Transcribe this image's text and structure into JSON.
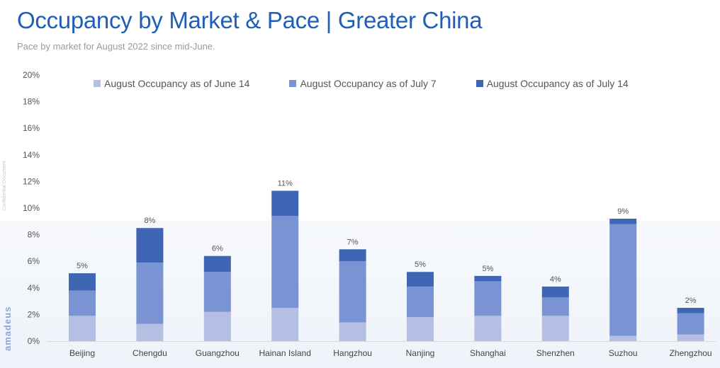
{
  "header": {
    "title": "Occupancy by Market & Pace | Greater China",
    "subtitle": "Pace by market for August 2022 since mid-June."
  },
  "side_note": "Confidential Document",
  "brand": "amadeus",
  "colors": {
    "series": [
      "#b4bfe3",
      "#7a93d3",
      "#3f66b5"
    ],
    "title": "#1f5fb8"
  },
  "chart_data": {
    "type": "bar",
    "stacked": true,
    "title": "Occupancy by Market & Pace | Greater China",
    "subtitle": "Pace by market for August 2022 since mid-June.",
    "xlabel": "",
    "ylabel": "",
    "ylim": [
      0,
      20
    ],
    "y_ticks": [
      "0%",
      "2%",
      "4%",
      "6%",
      "8%",
      "10%",
      "12%",
      "14%",
      "16%",
      "18%",
      "20%"
    ],
    "grid": false,
    "legend_position": "top",
    "categories": [
      "Beijing",
      "Chengdu",
      "Guangzhou",
      "Hainan Island",
      "Hangzhou",
      "Nanjing",
      "Shanghai",
      "Shenzhen",
      "Suzhou",
      "Zhengzhou"
    ],
    "series": [
      {
        "name": "August Occupancy as of June 14",
        "values": [
          1.9,
          1.3,
          2.2,
          2.5,
          1.4,
          1.8,
          1.9,
          1.9,
          0.4,
          0.5
        ]
      },
      {
        "name": "August Occupancy as of July 7",
        "values": [
          1.9,
          4.6,
          3.0,
          6.9,
          4.6,
          2.3,
          2.6,
          1.4,
          8.4,
          1.6
        ]
      },
      {
        "name": "August Occupancy as of July 14",
        "values": [
          1.3,
          2.6,
          1.2,
          1.9,
          0.9,
          1.1,
          0.4,
          0.8,
          0.4,
          0.4
        ]
      }
    ],
    "data_labels": [
      "5%",
      "8%",
      "6%",
      "11%",
      "7%",
      "5%",
      "5%",
      "4%",
      "9%",
      "2%"
    ]
  }
}
